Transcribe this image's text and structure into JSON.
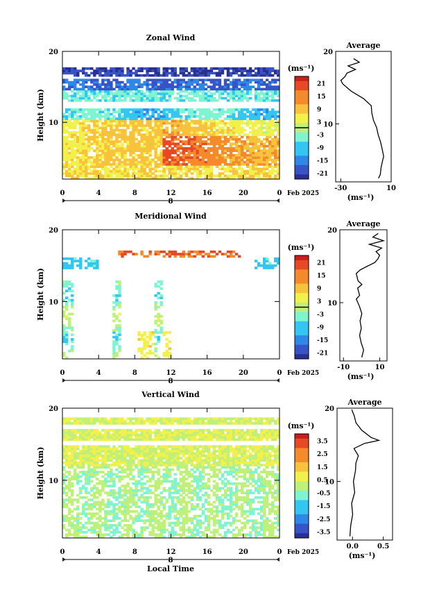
{
  "chart_data": [
    {
      "type": "heatmap",
      "title": "Zonal Wind",
      "ylabel": "Height (km)",
      "xlabel": "",
      "xlim": [
        0,
        24
      ],
      "ylim": [
        2,
        20
      ],
      "xticks": [
        "0",
        "4",
        "8",
        "12",
        "16",
        "20",
        "0"
      ],
      "yticks": [
        "10",
        "20"
      ],
      "date_axis": {
        "day": "8",
        "month_year": "Feb 2025"
      },
      "colorbar": {
        "unit": "(ms⁻¹)",
        "ticks": [
          "21",
          "15",
          "9",
          "3",
          "-3",
          "-9",
          "-15",
          "-21"
        ],
        "range": [
          -24,
          24
        ]
      },
      "average": {
        "title": "Average",
        "unit": "(ms⁻¹)",
        "xticks": [
          "-30",
          "10"
        ],
        "xlim": [
          -34,
          10
        ],
        "yticks": [
          "10",
          "20"
        ],
        "profile": [
          [
            0,
            2.5
          ],
          [
            1,
            3
          ],
          [
            2,
            4
          ],
          [
            3,
            5
          ],
          [
            4,
            5.5
          ],
          [
            3,
            6.5
          ],
          [
            2,
            7.5
          ],
          [
            0,
            8.5
          ],
          [
            -2,
            9.5
          ],
          [
            -4,
            10.5
          ],
          [
            -5,
            11.5
          ],
          [
            -6,
            12.5
          ],
          [
            -12,
            13.5
          ],
          [
            -22,
            14.5
          ],
          [
            -28,
            15.5
          ],
          [
            -30,
            16
          ],
          [
            -27,
            16.5
          ],
          [
            -25,
            17
          ],
          [
            -18,
            17.5
          ],
          [
            -24,
            18
          ],
          [
            -15,
            18.5
          ],
          [
            -20,
            19
          ]
        ]
      }
    },
    {
      "type": "heatmap",
      "title": "Meridional Wind",
      "ylabel": "Height (km)",
      "xlabel": "",
      "xlim": [
        0,
        24
      ],
      "ylim": [
        2,
        20
      ],
      "xticks": [
        "0",
        "4",
        "8",
        "12",
        "16",
        "20",
        "0"
      ],
      "yticks": [
        "10",
        "20"
      ],
      "date_axis": {
        "day": "8",
        "month_year": "Feb 2025"
      },
      "colorbar": {
        "unit": "(ms⁻¹)",
        "ticks": [
          "21",
          "15",
          "9",
          "3",
          "-3",
          "-9",
          "-15",
          "-21"
        ],
        "range": [
          -24,
          24
        ]
      },
      "average": {
        "title": "Average",
        "unit": "(ms⁻¹)",
        "xticks": [
          "-10",
          "10"
        ],
        "xlim": [
          -12,
          14
        ],
        "yticks": [
          "10",
          "20"
        ],
        "profile": [
          [
            0,
            2.5
          ],
          [
            1,
            3.5
          ],
          [
            0,
            4.5
          ],
          [
            -1,
            5.5
          ],
          [
            0,
            6.5
          ],
          [
            -1,
            7.5
          ],
          [
            0,
            8.5
          ],
          [
            -1,
            9.5
          ],
          [
            -3,
            10.5
          ],
          [
            -1,
            11
          ],
          [
            -2,
            12
          ],
          [
            0,
            12.5
          ],
          [
            -2,
            13
          ],
          [
            -3,
            14
          ],
          [
            -1,
            14.5
          ],
          [
            3,
            15
          ],
          [
            7,
            15.5
          ],
          [
            9,
            16
          ],
          [
            10,
            16.5
          ],
          [
            8,
            17
          ],
          [
            11,
            17.5
          ],
          [
            4,
            18
          ],
          [
            12,
            18.5
          ],
          [
            6,
            19
          ],
          [
            9,
            19.5
          ]
        ]
      }
    },
    {
      "type": "heatmap",
      "title": "Vertical Wind",
      "ylabel": "Height (km)",
      "xlabel": "Local Time",
      "xlim": [
        0,
        24
      ],
      "ylim": [
        2,
        20
      ],
      "xticks": [
        "0",
        "4",
        "8",
        "12",
        "16",
        "20",
        "0"
      ],
      "yticks": [
        "10",
        "20"
      ],
      "date_axis": {
        "day": "8",
        "month_year": "Feb 2025"
      },
      "colorbar": {
        "unit": "(ms⁻¹)",
        "ticks": [
          "3.5",
          "2.5",
          "1.5",
          "0.5",
          "-0.5",
          "-1.5",
          "-2.5",
          "-3.5"
        ],
        "range": [
          -4,
          4
        ]
      },
      "average": {
        "title": "Average",
        "unit": "(ms⁻¹)",
        "xticks": [
          "0.0",
          "0.5"
        ],
        "xlim": [
          -0.25,
          0.65
        ],
        "yticks": [
          "10",
          "20"
        ],
        "profile": [
          [
            -0.05,
            2.5
          ],
          [
            -0.03,
            4
          ],
          [
            0.0,
            5.5
          ],
          [
            -0.02,
            7
          ],
          [
            0.03,
            8.5
          ],
          [
            0.02,
            10
          ],
          [
            0.05,
            11.5
          ],
          [
            0.06,
            12.5
          ],
          [
            0.1,
            13.5
          ],
          [
            0.03,
            14.5
          ],
          [
            0.2,
            15.2
          ],
          [
            0.42,
            15.6
          ],
          [
            0.3,
            16
          ],
          [
            0.15,
            17
          ],
          [
            0.05,
            18
          ],
          [
            0.02,
            19
          ],
          [
            -0.02,
            19.8
          ]
        ]
      }
    }
  ]
}
